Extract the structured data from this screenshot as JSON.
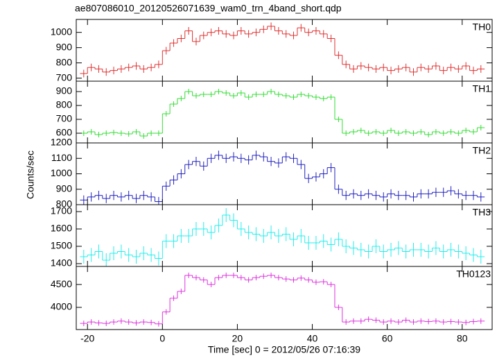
{
  "title": "ae807086010_20120526071639_wam0_trn_4band_short.qdp",
  "xlabel": "Time [sec] 0 = 2012/05/26 07:16:39",
  "ylabel": "Counts/sec",
  "xlim": [
    -23,
    88
  ],
  "xticks": [
    -20,
    0,
    20,
    40,
    60,
    80
  ],
  "chart_data": [
    {
      "type": "step",
      "label": "TH0",
      "color": "#e03030",
      "ylim": [
        680,
        1085
      ],
      "yticks": [
        700,
        800,
        900,
        1000
      ],
      "error": 25,
      "x": [
        -21,
        -19,
        -17,
        -15,
        -13,
        -11,
        -9,
        -7,
        -5,
        -3,
        -1,
        1,
        3,
        5,
        7,
        9,
        11,
        13,
        15,
        17,
        19,
        21,
        23,
        25,
        27,
        29,
        31,
        33,
        35,
        37,
        39,
        41,
        43,
        45,
        47,
        49,
        51,
        53,
        55,
        57,
        59,
        61,
        63,
        65,
        67,
        69,
        71,
        73,
        75,
        77,
        79,
        81,
        83,
        85
      ],
      "values": [
        730,
        770,
        760,
        740,
        750,
        760,
        770,
        780,
        760,
        770,
        790,
        880,
        930,
        960,
        1010,
        940,
        980,
        1000,
        1010,
        990,
        980,
        1010,
        990,
        1000,
        1020,
        1040,
        1010,
        990,
        980,
        1030,
        1000,
        1010,
        990,
        960,
        850,
        790,
        760,
        780,
        770,
        760,
        770,
        750,
        760,
        770,
        740,
        770,
        760,
        780,
        750,
        770,
        760,
        780,
        750,
        760
      ]
    },
    {
      "type": "step",
      "label": "TH1",
      "color": "#33dd33",
      "ylim": [
        530,
        975
      ],
      "yticks": [
        600,
        700,
        800,
        900
      ],
      "error": 20,
      "x": [
        -21,
        -19,
        -17,
        -15,
        -13,
        -11,
        -9,
        -7,
        -5,
        -3,
        -1,
        1,
        3,
        5,
        7,
        9,
        11,
        13,
        15,
        17,
        19,
        21,
        23,
        25,
        27,
        29,
        31,
        33,
        35,
        37,
        39,
        41,
        43,
        45,
        47,
        49,
        51,
        53,
        55,
        57,
        59,
        61,
        63,
        65,
        67,
        69,
        71,
        73,
        75,
        77,
        79,
        81,
        83,
        85
      ],
      "values": [
        600,
        610,
        590,
        600,
        605,
        600,
        595,
        610,
        580,
        600,
        600,
        740,
        810,
        850,
        900,
        870,
        880,
        880,
        900,
        890,
        870,
        890,
        860,
        880,
        880,
        900,
        880,
        870,
        860,
        880,
        870,
        860,
        850,
        860,
        700,
        600,
        610,
        620,
        600,
        610,
        600,
        620,
        600,
        610,
        600,
        610,
        590,
        610,
        600,
        610,
        600,
        620,
        610,
        640
      ]
    },
    {
      "type": "step",
      "label": "TH2",
      "color": "#2020c0",
      "ylim": [
        800,
        1200
      ],
      "yticks": [
        800,
        900,
        1000,
        1100,
        1200
      ],
      "error": 30,
      "x": [
        -21,
        -19,
        -17,
        -15,
        -13,
        -11,
        -9,
        -7,
        -5,
        -3,
        -1,
        1,
        3,
        5,
        7,
        9,
        11,
        13,
        15,
        17,
        19,
        21,
        23,
        25,
        27,
        29,
        31,
        33,
        35,
        37,
        39,
        41,
        43,
        45,
        47,
        49,
        51,
        53,
        55,
        57,
        59,
        61,
        63,
        65,
        67,
        69,
        71,
        73,
        75,
        77,
        79,
        81,
        83,
        85
      ],
      "values": [
        830,
        850,
        860,
        840,
        860,
        850,
        860,
        840,
        860,
        850,
        820,
        920,
        960,
        1000,
        1060,
        1080,
        1050,
        1100,
        1120,
        1100,
        1110,
        1100,
        1090,
        1120,
        1110,
        1080,
        1070,
        1110,
        1100,
        1060,
        970,
        980,
        1000,
        1040,
        900,
        860,
        870,
        860,
        870,
        860,
        850,
        870,
        860,
        860,
        850,
        870,
        870,
        880,
        880,
        890,
        870,
        860,
        860,
        850
      ]
    },
    {
      "type": "step",
      "label": "TH3",
      "color": "#22eeee",
      "ylim": [
        1384,
        1740
      ],
      "yticks": [
        1400,
        1500,
        1600,
        1700
      ],
      "error": 40,
      "x": [
        -21,
        -19,
        -17,
        -15,
        -13,
        -11,
        -9,
        -7,
        -5,
        -3,
        -1,
        1,
        3,
        5,
        7,
        9,
        11,
        13,
        15,
        17,
        19,
        21,
        23,
        25,
        27,
        29,
        31,
        33,
        35,
        37,
        39,
        41,
        43,
        45,
        47,
        49,
        51,
        53,
        55,
        57,
        59,
        61,
        63,
        65,
        67,
        69,
        71,
        73,
        75,
        77,
        79,
        81,
        83,
        85
      ],
      "values": [
        1440,
        1450,
        1470,
        1420,
        1460,
        1470,
        1450,
        1440,
        1460,
        1450,
        1430,
        1530,
        1530,
        1560,
        1560,
        1600,
        1600,
        1580,
        1620,
        1680,
        1650,
        1600,
        1580,
        1570,
        1560,
        1580,
        1560,
        1570,
        1540,
        1560,
        1520,
        1520,
        1530,
        1510,
        1540,
        1500,
        1490,
        1480,
        1470,
        1500,
        1470,
        1480,
        1490,
        1470,
        1480,
        1480,
        1470,
        1490,
        1470,
        1480,
        1470,
        1460,
        1450,
        1440
      ]
    },
    {
      "type": "step",
      "label": "TH0123",
      "color": "#dd33dd",
      "ylim": [
        3515,
        4895
      ],
      "yticks": [
        4000,
        4500
      ],
      "error": 60,
      "x": [
        -21,
        -19,
        -17,
        -15,
        -13,
        -11,
        -9,
        -7,
        -5,
        -3,
        -1,
        1,
        3,
        5,
        7,
        9,
        11,
        13,
        15,
        17,
        19,
        21,
        23,
        25,
        27,
        29,
        31,
        33,
        35,
        37,
        39,
        41,
        43,
        45,
        47,
        49,
        51,
        53,
        55,
        57,
        59,
        61,
        63,
        65,
        67,
        69,
        71,
        73,
        75,
        77,
        79,
        81,
        83,
        85
      ],
      "values": [
        3650,
        3680,
        3660,
        3650,
        3680,
        3700,
        3680,
        3660,
        3680,
        3670,
        3640,
        3900,
        4200,
        4350,
        4700,
        4650,
        4600,
        4500,
        4650,
        4700,
        4700,
        4650,
        4600,
        4650,
        4680,
        4700,
        4650,
        4620,
        4600,
        4640,
        4600,
        4550,
        4560,
        4500,
        4000,
        3680,
        3700,
        3700,
        3740,
        3720,
        3680,
        3700,
        3680,
        3720,
        3680,
        3700,
        3690,
        3700,
        3680,
        3690,
        3680,
        3670,
        3690,
        3700
      ]
    }
  ]
}
